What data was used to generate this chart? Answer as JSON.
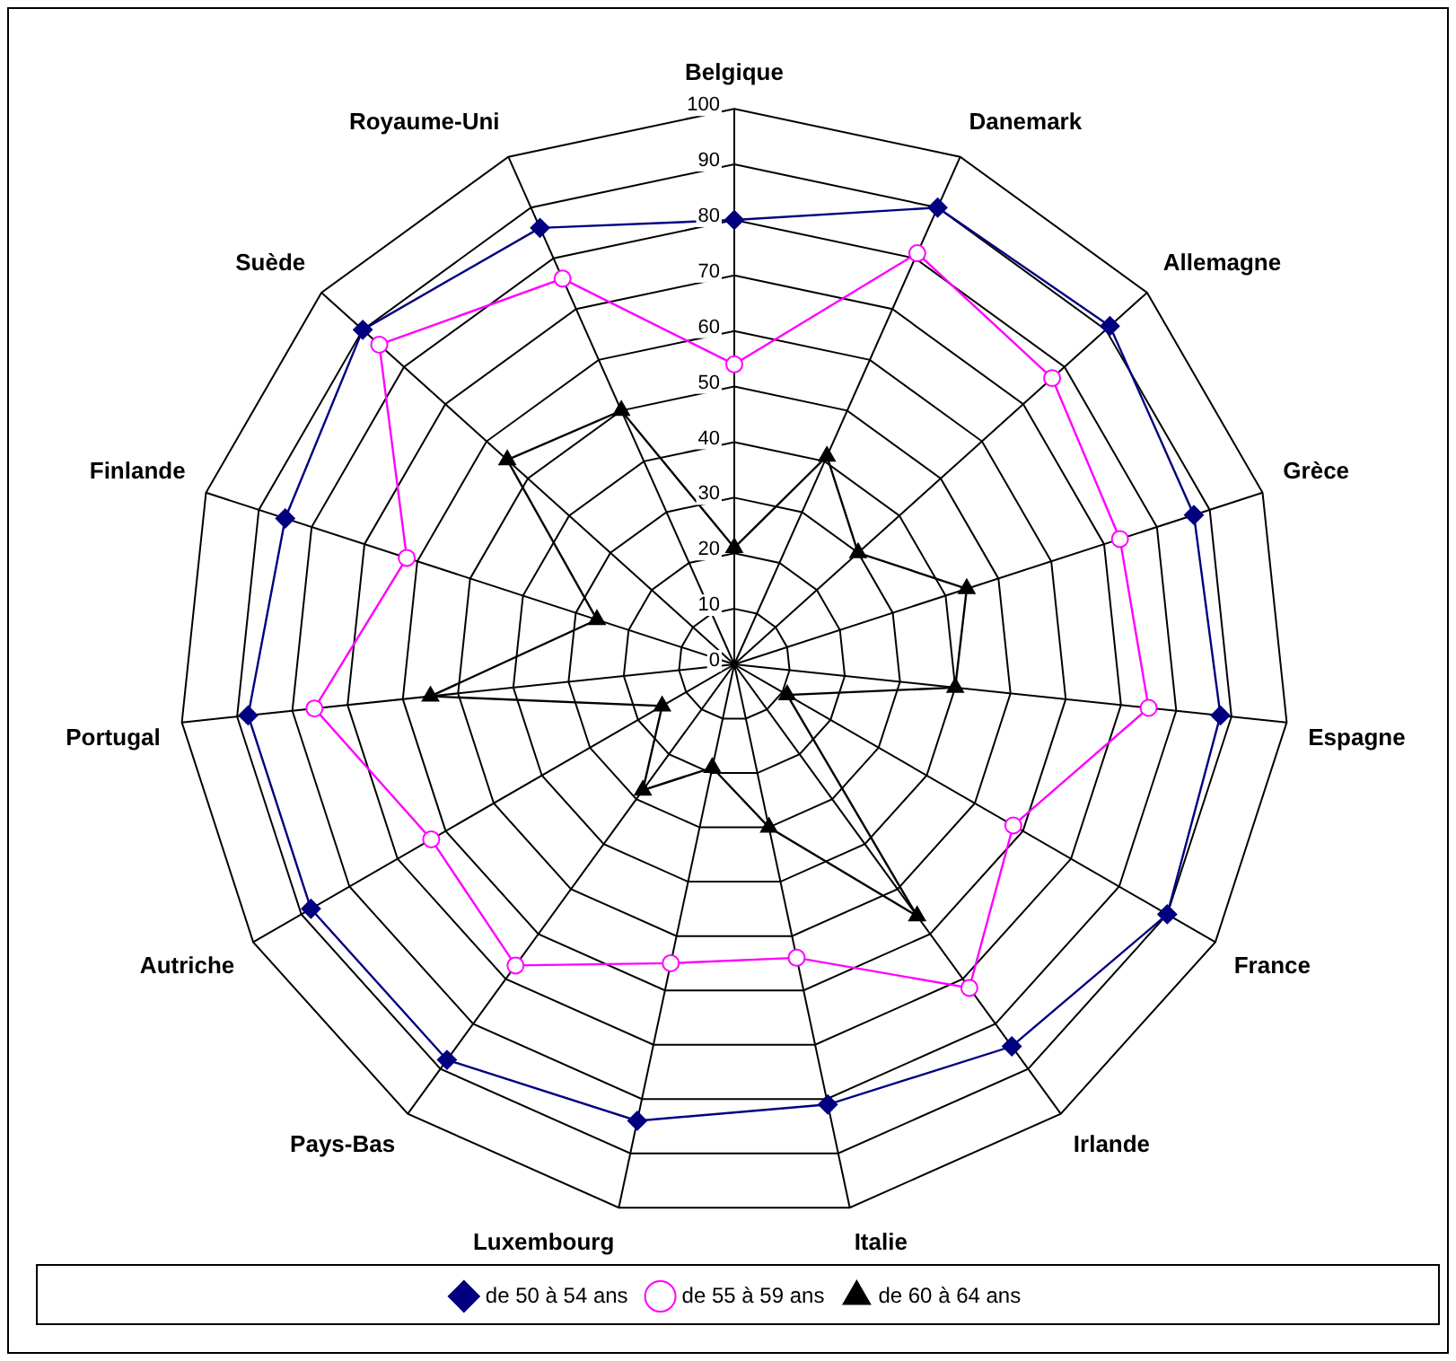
{
  "chart_data": {
    "type": "radar",
    "categories": [
      "Belgique",
      "Danemark",
      "Allemagne",
      "Grèce",
      "Espagne",
      "France",
      "Irlande",
      "Italie",
      "Luxembourg",
      "Pays-Bas",
      "Autriche",
      "Portugal",
      "Finlande",
      "Suède",
      "Royaume-Uni"
    ],
    "ylim": [
      0,
      100
    ],
    "yticks": [
      0,
      10,
      20,
      30,
      40,
      50,
      60,
      70,
      80,
      90,
      100
    ],
    "grid": true,
    "legend": "bottom",
    "series": [
      {
        "name": "de 50 à 54 ans",
        "color": "#000080",
        "marker": "diamond",
        "values": [
          80,
          90,
          91,
          87,
          88,
          90,
          85,
          81,
          84,
          88,
          88,
          88,
          85,
          90,
          86
        ]
      },
      {
        "name": "de 55 à 59 ans",
        "color": "#ff00ff",
        "marker": "circle",
        "values": [
          54,
          81,
          77,
          73,
          75,
          58,
          72,
          54,
          55,
          67,
          63,
          76,
          62,
          86,
          76
        ]
      },
      {
        "name": "de 60 à 64 ans",
        "color": "#000000",
        "marker": "triangle",
        "values": [
          21,
          41,
          30,
          44,
          40,
          11,
          56,
          30,
          19,
          28,
          15,
          55,
          26,
          55,
          50
        ]
      }
    ]
  }
}
